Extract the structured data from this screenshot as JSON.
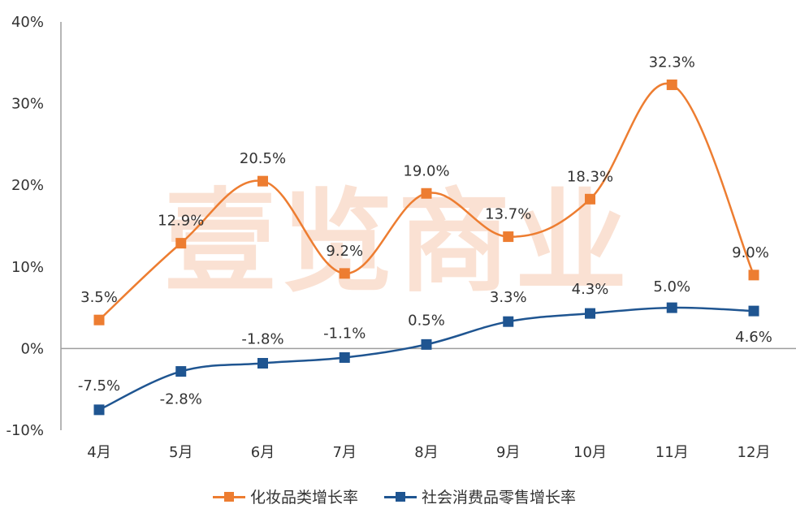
{
  "chart_data": {
    "type": "line",
    "categories": [
      "4月",
      "5月",
      "6月",
      "7月",
      "8月",
      "9月",
      "10月",
      "11月",
      "12月"
    ],
    "y_ticks": [
      "40%",
      "30%",
      "20%",
      "10%",
      "0%",
      "-10%"
    ],
    "ylim": [
      -10,
      40
    ],
    "grid": false,
    "legend_position": "bottom",
    "watermark": "壹览商业",
    "series": [
      {
        "name": "化妆品类增长率",
        "color": "#ED7D31",
        "values": [
          3.5,
          12.9,
          20.5,
          9.2,
          19.0,
          13.7,
          18.3,
          32.3,
          9.0
        ],
        "labels": [
          "3.5%",
          "12.9%",
          "20.5%",
          "9.2%",
          "19.0%",
          "13.7%",
          "18.3%",
          "32.3%",
          "9.0%"
        ]
      },
      {
        "name": "社会消费品零售增长率",
        "color": "#1F5591",
        "values": [
          -7.5,
          -2.8,
          -1.8,
          -1.1,
          0.5,
          3.3,
          4.3,
          5.0,
          4.6
        ],
        "labels": [
          "-7.5%",
          "-2.8%",
          "-1.8%",
          "-1.1%",
          "0.5%",
          "3.3%",
          "4.3%",
          "5.0%",
          "4.6%"
        ]
      }
    ]
  }
}
